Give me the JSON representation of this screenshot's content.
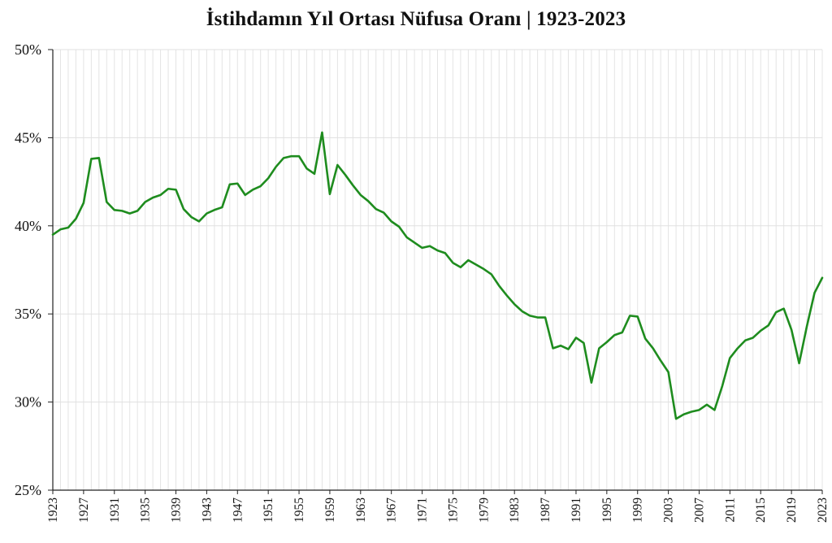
{
  "chart_data": {
    "type": "line",
    "title": "İstihdamın Yıl Ortası Nüfusa Oranı | 1923-2023",
    "xlabel": "",
    "ylabel": "",
    "ylim": [
      25,
      50
    ],
    "xlim": [
      1923,
      2023
    ],
    "y_ticks": [
      "25%",
      "30%",
      "35%",
      "40%",
      "45%",
      "50%"
    ],
    "x_ticks": [
      "1923",
      "1927",
      "1931",
      "1935",
      "1939",
      "1943",
      "1947",
      "1951",
      "1955",
      "1959",
      "1963",
      "1967",
      "1971",
      "1975",
      "1979",
      "1983",
      "1987",
      "1991",
      "1995",
      "1999",
      "2003",
      "2007",
      "2011",
      "2015",
      "2019",
      "2023"
    ],
    "grid": true,
    "line_color": "#1e8c1e",
    "series": [
      {
        "x": [
          1923,
          1924,
          1925,
          1926,
          1927,
          1928,
          1929,
          1930,
          1931,
          1932,
          1933,
          1934,
          1935,
          1936,
          1937,
          1938,
          1939,
          1940,
          1941,
          1942,
          1943,
          1944,
          1945,
          1946,
          1947,
          1948,
          1949,
          1950,
          1951,
          1952,
          1953,
          1954,
          1955,
          1956,
          1957,
          1958,
          1959,
          1960,
          1961,
          1962,
          1963,
          1964,
          1965,
          1966,
          1967,
          1968,
          1969,
          1970,
          1971,
          1972,
          1973,
          1974,
          1975,
          1976,
          1977,
          1978,
          1979,
          1980,
          1981,
          1982,
          1983,
          1984,
          1985,
          1986,
          1987,
          1988,
          1989,
          1990,
          1991,
          1992,
          1993,
          1994,
          1995,
          1996,
          1997,
          1998,
          1999,
          2000,
          2001,
          2002,
          2003,
          2004,
          2005,
          2006,
          2007,
          2008,
          2009,
          2010,
          2011,
          2012,
          2013,
          2014,
          2015,
          2016,
          2017,
          2018,
          2019,
          2020,
          2021,
          2022,
          2023
        ],
        "values": [
          39.5,
          39.8,
          39.9,
          40.4,
          41.3,
          43.8,
          43.85,
          41.35,
          40.9,
          40.85,
          40.7,
          40.85,
          41.35,
          41.6,
          41.75,
          42.1,
          42.05,
          40.95,
          40.5,
          40.25,
          40.7,
          40.9,
          41.05,
          42.35,
          42.4,
          41.75,
          42.05,
          42.25,
          42.7,
          43.35,
          43.85,
          43.95,
          43.95,
          43.25,
          42.95,
          45.3,
          41.8,
          43.45,
          42.9,
          42.3,
          41.75,
          41.4,
          40.95,
          40.75,
          40.25,
          39.95,
          39.35,
          39.05,
          38.75,
          38.85,
          38.6,
          38.45,
          37.9,
          37.65,
          38.05,
          37.8,
          37.55,
          37.25,
          36.6,
          36.05,
          35.55,
          35.15,
          34.9,
          34.8,
          34.8,
          33.05,
          33.2,
          33.0,
          33.65,
          33.35,
          31.1,
          33.05,
          33.4,
          33.8,
          33.95,
          34.9,
          34.85,
          33.6,
          33.05,
          32.35,
          31.7,
          29.05,
          29.3,
          29.45,
          29.55,
          29.85,
          29.55,
          30.9,
          32.5,
          33.05,
          33.5,
          33.65,
          34.05,
          34.35,
          35.1,
          35.3,
          34.1,
          32.2,
          34.3,
          36.2,
          37.05
        ]
      }
    ]
  }
}
